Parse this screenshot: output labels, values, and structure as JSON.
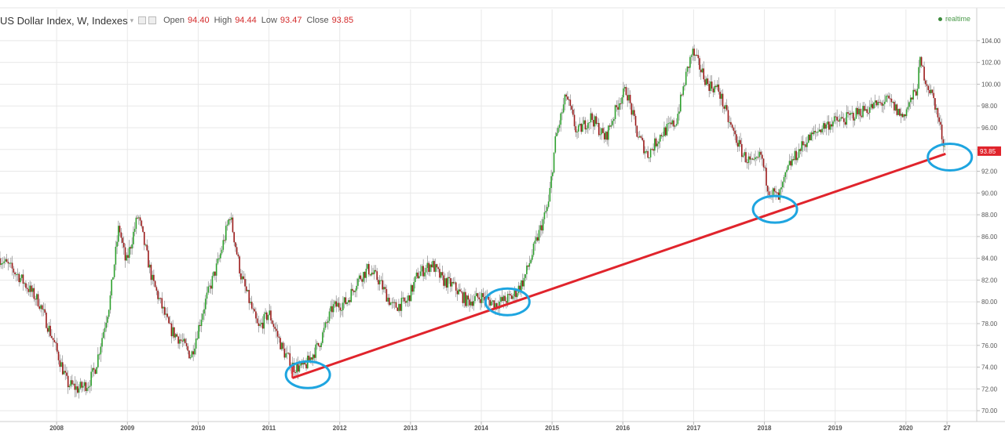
{
  "header": {
    "title": "US Dollar Index, W, Indexes",
    "dropdown_glyph": "▾",
    "open_label": "Open",
    "open_value": "94.40",
    "high_label": "High",
    "high_value": "94.44",
    "low_label": "Low",
    "low_value": "93.47",
    "close_label": "Close",
    "close_value": "93.85",
    "realtime_label": "realtime"
  },
  "colors": {
    "up": "#2ea02e",
    "down": "#9b1a1a",
    "trendline": "#e0242c",
    "circle": "#1ea5e0",
    "price_tag": "#e0242c",
    "grid": "#e8e8e8"
  },
  "chart_data": {
    "type": "candlestick",
    "title": "US Dollar Index, W, Indexes",
    "x_range": [
      2007.2,
      2021.0
    ],
    "ylim": [
      69.0,
      105.0
    ],
    "y_ticks": [
      "70.00",
      "72.00",
      "74.00",
      "76.00",
      "78.00",
      "80.00",
      "82.00",
      "84.00",
      "86.00",
      "88.00",
      "90.00",
      "92.00",
      "94.00",
      "96.00",
      "98.00",
      "100.00",
      "102.00",
      "104.00"
    ],
    "x_ticks": [
      "2008",
      "2009",
      "2010",
      "2011",
      "2012",
      "2013",
      "2014",
      "2015",
      "2016",
      "2017",
      "2018",
      "2019",
      "2020",
      "27"
    ],
    "x_tick_positions": [
      2008.0,
      2009.0,
      2010.0,
      2011.0,
      2012.0,
      2013.0,
      2014.0,
      2015.0,
      2016.0,
      2017.0,
      2018.0,
      2019.0,
      2020.0,
      2020.58
    ],
    "price_path": [
      [
        2007.2,
        84.0
      ],
      [
        2007.45,
        82.5
      ],
      [
        2007.75,
        80.0
      ],
      [
        2007.95,
        76.5
      ],
      [
        2008.15,
        72.5
      ],
      [
        2008.3,
        72.0
      ],
      [
        2008.45,
        72.5
      ],
      [
        2008.55,
        74.0
      ],
      [
        2008.75,
        80.0
      ],
      [
        2008.88,
        87.0
      ],
      [
        2008.98,
        83.5
      ],
      [
        2009.15,
        88.0
      ],
      [
        2009.35,
        82.0
      ],
      [
        2009.6,
        77.5
      ],
      [
        2009.75,
        76.5
      ],
      [
        2009.9,
        75.0
      ],
      [
        2010.1,
        80.0
      ],
      [
        2010.3,
        84.0
      ],
      [
        2010.45,
        88.0
      ],
      [
        2010.6,
        82.5
      ],
      [
        2010.85,
        77.5
      ],
      [
        2011.0,
        79.0
      ],
      [
        2011.2,
        75.5
      ],
      [
        2011.35,
        74.0
      ],
      [
        2011.5,
        74.0
      ],
      [
        2011.7,
        76.0
      ],
      [
        2011.9,
        79.5
      ],
      [
        2012.1,
        80.0
      ],
      [
        2012.25,
        82.0
      ],
      [
        2012.4,
        83.0
      ],
      [
        2012.55,
        82.0
      ],
      [
        2012.75,
        79.5
      ],
      [
        2012.95,
        80.0
      ],
      [
        2013.1,
        82.5
      ],
      [
        2013.3,
        83.5
      ],
      [
        2013.45,
        82.0
      ],
      [
        2013.6,
        81.5
      ],
      [
        2013.8,
        80.0
      ],
      [
        2014.0,
        80.5
      ],
      [
        2014.2,
        79.8
      ],
      [
        2014.45,
        80.5
      ],
      [
        2014.6,
        82.0
      ],
      [
        2014.75,
        85.0
      ],
      [
        2014.95,
        89.0
      ],
      [
        2015.05,
        95.0
      ],
      [
        2015.2,
        99.0
      ],
      [
        2015.35,
        95.5
      ],
      [
        2015.55,
        97.0
      ],
      [
        2015.75,
        95.0
      ],
      [
        2015.95,
        98.5
      ],
      [
        2016.05,
        99.5
      ],
      [
        2016.2,
        95.5
      ],
      [
        2016.35,
        93.5
      ],
      [
        2016.55,
        95.5
      ],
      [
        2016.75,
        96.5
      ],
      [
        2016.9,
        101.0
      ],
      [
        2016.98,
        103.0
      ],
      [
        2017.2,
        100.0
      ],
      [
        2017.35,
        99.5
      ],
      [
        2017.5,
        96.5
      ],
      [
        2017.7,
        93.5
      ],
      [
        2017.85,
        92.5
      ],
      [
        2017.95,
        93.5
      ],
      [
        2018.05,
        90.5
      ],
      [
        2018.2,
        89.5
      ],
      [
        2018.35,
        92.5
      ],
      [
        2018.55,
        94.5
      ],
      [
        2018.8,
        96.0
      ],
      [
        2018.95,
        96.5
      ],
      [
        2019.15,
        96.8
      ],
      [
        2019.35,
        97.5
      ],
      [
        2019.55,
        98.0
      ],
      [
        2019.75,
        98.5
      ],
      [
        2019.95,
        97.0
      ],
      [
        2020.15,
        99.5
      ],
      [
        2020.2,
        102.0
      ],
      [
        2020.3,
        100.0
      ],
      [
        2020.4,
        98.5
      ],
      [
        2020.5,
        95.5
      ],
      [
        2020.56,
        93.85
      ]
    ],
    "trendline": [
      [
        2011.33,
        73.0
      ],
      [
        2020.56,
        93.6
      ]
    ],
    "circles": [
      {
        "x": 2011.55,
        "y": 73.3
      },
      {
        "x": 2014.37,
        "y": 80.0
      },
      {
        "x": 2018.15,
        "y": 88.5
      },
      {
        "x": 2020.62,
        "y": 93.3
      }
    ],
    "last_price": "93.85"
  }
}
